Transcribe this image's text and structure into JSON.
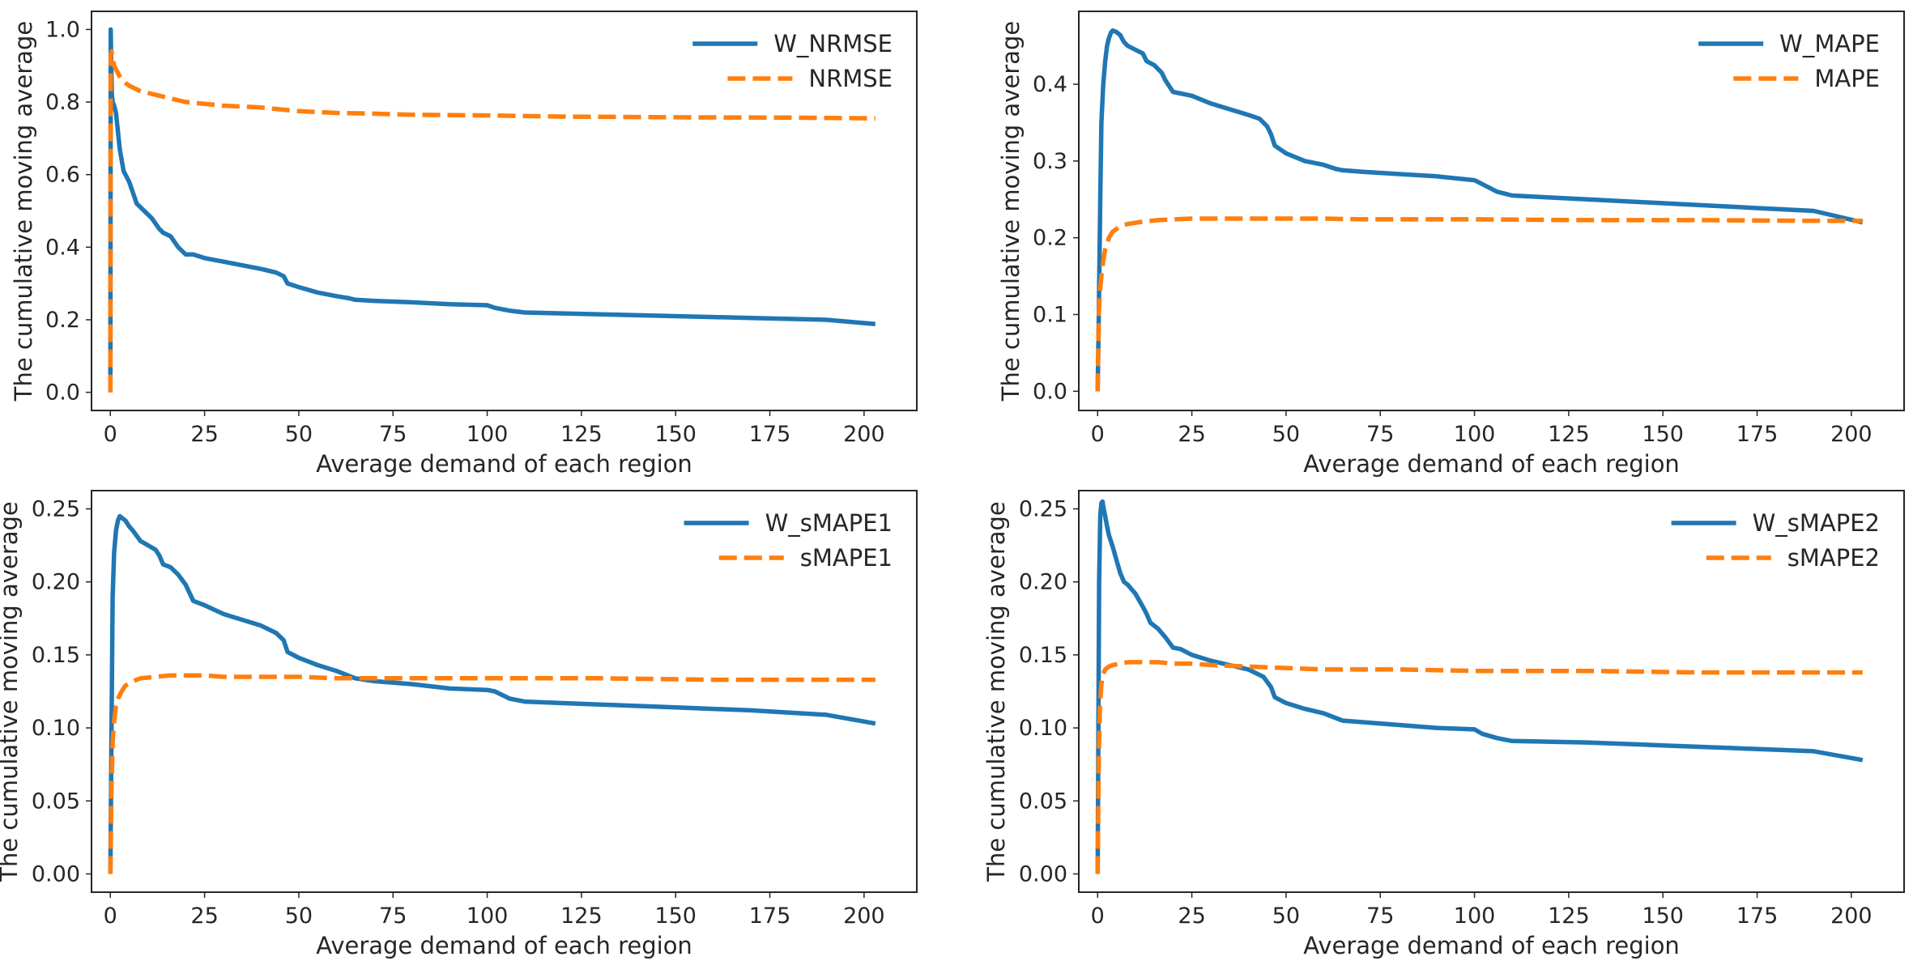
{
  "colors": {
    "primary": "#1f77b4",
    "secondary": "#ff7f0e",
    "frame": "#262626"
  },
  "chart_data": [
    {
      "type": "line",
      "xlabel": "Average demand of each region",
      "ylabel": "The cumulative moving average",
      "xlim": [
        -5,
        214
      ],
      "ylim": [
        -0.05,
        1.05
      ],
      "xticks": [
        0,
        25,
        50,
        75,
        100,
        125,
        150,
        175,
        200
      ],
      "xtick_labels": [
        "0",
        "25",
        "50",
        "75",
        "100",
        "125",
        "150",
        "175",
        "200"
      ],
      "yticks": [
        0,
        0.2,
        0.4,
        0.6,
        0.8,
        1.0
      ],
      "ytick_labels": [
        "0.0",
        "0.2",
        "0.4",
        "0.6",
        "0.8",
        "1.0"
      ],
      "legend_position": "top-right",
      "grid": false,
      "series": [
        {
          "name": "W_NRMSE",
          "style": "solid",
          "x": [
            0,
            0.1,
            0.25,
            0.4,
            0.6,
            1,
            1.5,
            2.5,
            3.5,
            5,
            7,
            9,
            11,
            13,
            14,
            16,
            18,
            20,
            22,
            25,
            30,
            40,
            44,
            46,
            47,
            50,
            55,
            60,
            63,
            65,
            70,
            80,
            90,
            100,
            102,
            106,
            110,
            130,
            150,
            170,
            190,
            203
          ],
          "y": [
            0,
            1.0,
            0.9,
            0.82,
            0.8,
            0.79,
            0.77,
            0.67,
            0.61,
            0.58,
            0.52,
            0.5,
            0.48,
            0.45,
            0.44,
            0.43,
            0.4,
            0.38,
            0.38,
            0.37,
            0.36,
            0.34,
            0.33,
            0.32,
            0.3,
            0.29,
            0.275,
            0.265,
            0.26,
            0.255,
            0.252,
            0.248,
            0.243,
            0.24,
            0.233,
            0.225,
            0.22,
            0.215,
            0.21,
            0.205,
            0.2,
            0.188
          ]
        },
        {
          "name": "NRMSE",
          "style": "dashed",
          "x": [
            0,
            0.1,
            0.3,
            0.6,
            1,
            2,
            3,
            5,
            8,
            12,
            16,
            20,
            25,
            30,
            40,
            50,
            60,
            70,
            80,
            100,
            120,
            150,
            180,
            203
          ],
          "y": [
            0,
            0.93,
            0.94,
            0.92,
            0.9,
            0.88,
            0.86,
            0.845,
            0.83,
            0.82,
            0.81,
            0.8,
            0.795,
            0.79,
            0.785,
            0.775,
            0.77,
            0.768,
            0.765,
            0.763,
            0.76,
            0.758,
            0.757,
            0.755
          ]
        }
      ]
    },
    {
      "type": "line",
      "xlabel": "Average demand of each region",
      "ylabel": "The cumulative moving average",
      "xlim": [
        -5,
        214
      ],
      "ylim": [
        -0.025,
        0.495
      ],
      "xticks": [
        0,
        25,
        50,
        75,
        100,
        125,
        150,
        175,
        200
      ],
      "xtick_labels": [
        "0",
        "25",
        "50",
        "75",
        "100",
        "125",
        "150",
        "175",
        "200"
      ],
      "yticks": [
        0,
        0.1,
        0.2,
        0.3,
        0.4
      ],
      "ytick_labels": [
        "0.0",
        "0.1",
        "0.2",
        "0.3",
        "0.4"
      ],
      "legend_position": "top-right",
      "grid": false,
      "series": [
        {
          "name": "W_MAPE",
          "style": "solid",
          "x": [
            0,
            0.3,
            0.7,
            1,
            1.5,
            2,
            2.5,
            3,
            3.5,
            4,
            5,
            6,
            7,
            8,
            10,
            12,
            13,
            15,
            17,
            18,
            20,
            25,
            30,
            40,
            43,
            45,
            46,
            47,
            50,
            55,
            60,
            63,
            65,
            70,
            80,
            90,
            100,
            102,
            106,
            110,
            130,
            150,
            170,
            190,
            203
          ],
          "y": [
            0,
            0.1,
            0.25,
            0.35,
            0.4,
            0.43,
            0.45,
            0.46,
            0.467,
            0.47,
            0.468,
            0.464,
            0.455,
            0.45,
            0.445,
            0.44,
            0.43,
            0.425,
            0.415,
            0.405,
            0.39,
            0.385,
            0.375,
            0.36,
            0.355,
            0.345,
            0.335,
            0.32,
            0.31,
            0.3,
            0.295,
            0.29,
            0.288,
            0.286,
            0.283,
            0.28,
            0.275,
            0.27,
            0.26,
            0.255,
            0.25,
            0.245,
            0.24,
            0.235,
            0.22
          ]
        },
        {
          "name": "MAPE",
          "style": "dashed",
          "x": [
            0,
            0.3,
            0.6,
            1,
            1.5,
            2,
            3,
            4,
            6,
            8,
            12,
            16,
            20,
            25,
            30,
            40,
            50,
            60,
            70,
            80,
            100,
            130,
            160,
            190,
            203
          ],
          "y": [
            0,
            0.1,
            0.13,
            0.15,
            0.17,
            0.185,
            0.2,
            0.208,
            0.215,
            0.218,
            0.221,
            0.223,
            0.224,
            0.225,
            0.225,
            0.225,
            0.225,
            0.225,
            0.224,
            0.224,
            0.224,
            0.223,
            0.223,
            0.222,
            0.222
          ]
        }
      ]
    },
    {
      "type": "line",
      "xlabel": "Average demand of each region",
      "ylabel": "The cumulative moving average",
      "xlim": [
        -5,
        214
      ],
      "ylim": [
        -0.0125,
        0.2625
      ],
      "xticks": [
        0,
        25,
        50,
        75,
        100,
        125,
        150,
        175,
        200
      ],
      "xtick_labels": [
        "0",
        "25",
        "50",
        "75",
        "100",
        "125",
        "150",
        "175",
        "200"
      ],
      "yticks": [
        0,
        0.05,
        0.1,
        0.15,
        0.2,
        0.25
      ],
      "ytick_labels": [
        "0.00",
        "0.05",
        "0.10",
        "0.15",
        "0.20",
        "0.25"
      ],
      "legend_position": "top-right",
      "grid": false,
      "series": [
        {
          "name": "W_sMAPE1",
          "style": "solid",
          "x": [
            0,
            0.3,
            0.6,
            1,
            1.5,
            2,
            2.5,
            3,
            4,
            5,
            6,
            8,
            10,
            12,
            13,
            14,
            16,
            18,
            20,
            22,
            25,
            30,
            40,
            44,
            46,
            47,
            50,
            55,
            60,
            63,
            65,
            70,
            80,
            90,
            100,
            102,
            106,
            110,
            130,
            150,
            170,
            190,
            203
          ],
          "y": [
            0,
            0.1,
            0.19,
            0.22,
            0.235,
            0.242,
            0.245,
            0.244,
            0.242,
            0.238,
            0.235,
            0.228,
            0.225,
            0.222,
            0.218,
            0.212,
            0.21,
            0.205,
            0.198,
            0.187,
            0.184,
            0.178,
            0.17,
            0.165,
            0.16,
            0.152,
            0.148,
            0.143,
            0.139,
            0.136,
            0.134,
            0.132,
            0.13,
            0.127,
            0.126,
            0.125,
            0.12,
            0.118,
            0.116,
            0.114,
            0.112,
            0.109,
            0.103
          ]
        },
        {
          "name": "sMAPE1",
          "style": "dashed",
          "x": [
            0,
            0.3,
            0.6,
            1,
            1.5,
            2,
            3,
            4,
            6,
            8,
            12,
            16,
            20,
            25,
            30,
            40,
            50,
            60,
            70,
            80,
            100,
            130,
            160,
            190,
            203
          ],
          "y": [
            0,
            0.06,
            0.09,
            0.105,
            0.115,
            0.12,
            0.125,
            0.129,
            0.132,
            0.134,
            0.135,
            0.136,
            0.136,
            0.136,
            0.135,
            0.135,
            0.135,
            0.134,
            0.134,
            0.134,
            0.134,
            0.134,
            0.133,
            0.133,
            0.133
          ]
        }
      ]
    },
    {
      "type": "line",
      "xlabel": "Average demand of each region",
      "ylabel": "The cumulative moving average",
      "xlim": [
        -5,
        214
      ],
      "ylim": [
        -0.0125,
        0.2625
      ],
      "xticks": [
        0,
        25,
        50,
        75,
        100,
        125,
        150,
        175,
        200
      ],
      "xtick_labels": [
        "0",
        "25",
        "50",
        "75",
        "100",
        "125",
        "150",
        "175",
        "200"
      ],
      "yticks": [
        0,
        0.05,
        0.1,
        0.15,
        0.2,
        0.25
      ],
      "ytick_labels": [
        "0.00",
        "0.05",
        "0.10",
        "0.15",
        "0.20",
        "0.25"
      ],
      "legend_position": "top-right",
      "grid": false,
      "series": [
        {
          "name": "W_sMAPE2",
          "style": "solid",
          "x": [
            0,
            0.2,
            0.4,
            0.7,
            1,
            1.3,
            1.6,
            2,
            2.5,
            3,
            4,
            5,
            6,
            7,
            8,
            10,
            12,
            13,
            14,
            16,
            18,
            20,
            22,
            25,
            30,
            35,
            40,
            44,
            46,
            47,
            50,
            55,
            60,
            63,
            65,
            70,
            80,
            90,
            100,
            102,
            106,
            110,
            130,
            150,
            170,
            190,
            203
          ],
          "y": [
            0,
            0.1,
            0.2,
            0.245,
            0.254,
            0.255,
            0.25,
            0.245,
            0.238,
            0.232,
            0.224,
            0.215,
            0.206,
            0.2,
            0.198,
            0.192,
            0.183,
            0.178,
            0.172,
            0.168,
            0.162,
            0.155,
            0.154,
            0.15,
            0.146,
            0.143,
            0.14,
            0.135,
            0.128,
            0.121,
            0.117,
            0.113,
            0.11,
            0.107,
            0.105,
            0.104,
            0.102,
            0.1,
            0.099,
            0.096,
            0.093,
            0.091,
            0.09,
            0.088,
            0.086,
            0.084,
            0.078
          ]
        },
        {
          "name": "sMAPE2",
          "style": "dashed",
          "x": [
            0,
            0.3,
            0.6,
            1,
            1.5,
            2,
            3,
            4,
            6,
            8,
            12,
            16,
            20,
            25,
            30,
            40,
            50,
            60,
            70,
            80,
            100,
            130,
            160,
            190,
            203
          ],
          "y": [
            0,
            0.08,
            0.115,
            0.13,
            0.137,
            0.14,
            0.142,
            0.143,
            0.144,
            0.145,
            0.145,
            0.145,
            0.144,
            0.144,
            0.143,
            0.142,
            0.141,
            0.14,
            0.14,
            0.14,
            0.139,
            0.139,
            0.138,
            0.138,
            0.138
          ]
        }
      ]
    }
  ]
}
